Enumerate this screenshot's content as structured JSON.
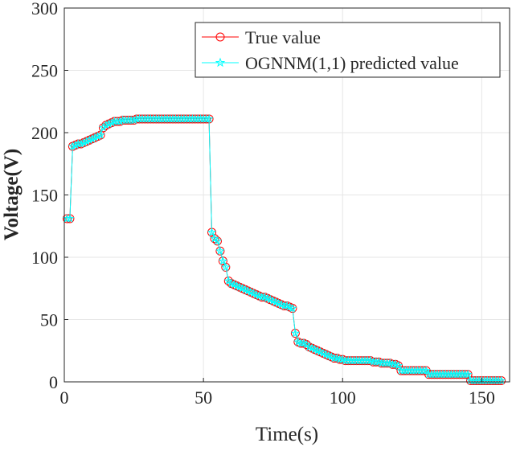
{
  "chart_data": {
    "type": "line",
    "title": "",
    "xlabel": "Time(s)",
    "ylabel": "Voltage(V)",
    "xlim": [
      0,
      160
    ],
    "ylim": [
      0,
      300
    ],
    "xticks": [
      0,
      50,
      100,
      150
    ],
    "yticks": [
      0,
      50,
      100,
      150,
      200,
      250,
      300
    ],
    "grid": true,
    "legend_position": "top-right",
    "x_start": 1,
    "series": [
      {
        "name": "True value",
        "color": "#ff0000",
        "marker": "circle",
        "values": [
          131,
          131,
          189,
          190,
          191,
          191,
          192,
          193,
          194,
          195,
          196,
          197,
          198,
          204,
          206,
          207,
          208,
          209,
          209,
          209,
          210,
          210,
          210,
          210,
          210,
          211,
          211,
          211,
          211,
          211,
          211,
          211,
          211,
          211,
          211,
          211,
          211,
          211,
          211,
          211,
          211,
          211,
          211,
          211,
          211,
          211,
          211,
          211,
          211,
          211,
          211,
          211,
          120,
          115,
          113,
          105,
          97,
          92,
          81,
          79,
          78,
          77,
          76,
          75,
          74,
          73,
          72,
          71,
          70,
          69,
          68,
          68,
          67,
          66,
          65,
          64,
          63,
          62,
          61,
          61,
          60,
          59,
          39,
          32,
          31,
          31,
          30,
          28,
          27,
          26,
          25,
          24,
          23,
          22,
          21,
          20,
          19,
          19,
          18,
          18,
          17,
          17,
          17,
          17,
          17,
          17,
          17,
          17,
          17,
          17,
          16,
          16,
          16,
          15,
          15,
          15,
          15,
          14,
          14,
          13,
          9,
          9,
          9,
          9,
          9,
          9,
          9,
          9,
          9,
          9,
          6,
          6,
          6,
          6,
          6,
          6,
          6,
          6,
          6,
          6,
          6,
          6,
          6,
          6,
          6,
          1,
          1,
          1,
          1,
          1,
          1,
          1,
          1,
          1,
          1,
          1,
          1
        ]
      },
      {
        "name": "OGNNM(1,1) predicted value",
        "color": "#00ffff",
        "marker": "pentagram",
        "values": [
          131,
          131,
          189,
          190,
          191,
          191,
          192,
          193,
          194,
          195,
          196,
          197,
          198,
          204,
          206,
          207,
          208,
          209,
          209,
          209,
          210,
          210,
          210,
          210,
          210,
          211,
          211,
          211,
          211,
          211,
          211,
          211,
          211,
          211,
          211,
          211,
          211,
          211,
          211,
          211,
          211,
          211,
          211,
          211,
          211,
          211,
          211,
          211,
          211,
          211,
          211,
          211,
          120,
          115,
          113,
          105,
          97,
          92,
          81,
          79,
          78,
          77,
          76,
          75,
          74,
          73,
          72,
          71,
          70,
          69,
          68,
          68,
          67,
          66,
          65,
          64,
          63,
          62,
          61,
          61,
          60,
          59,
          39,
          32,
          31,
          31,
          30,
          28,
          27,
          26,
          25,
          24,
          23,
          22,
          21,
          20,
          19,
          19,
          18,
          18,
          17,
          17,
          17,
          17,
          17,
          17,
          17,
          17,
          17,
          17,
          16,
          16,
          16,
          15,
          15,
          15,
          15,
          14,
          14,
          13,
          9,
          9,
          9,
          9,
          9,
          9,
          9,
          9,
          9,
          9,
          6,
          6,
          6,
          6,
          6,
          6,
          6,
          6,
          6,
          6,
          6,
          6,
          6,
          6,
          6,
          1,
          1,
          1,
          1,
          1,
          1,
          1,
          1,
          1,
          1,
          1,
          1
        ]
      }
    ]
  }
}
